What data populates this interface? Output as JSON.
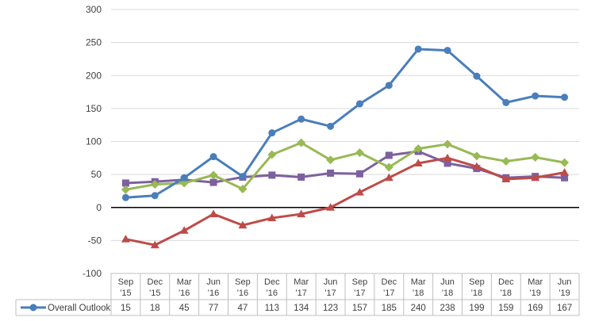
{
  "chart_data": {
    "type": "line",
    "title": "",
    "xlabel": "",
    "ylabel": "",
    "ylim": [
      -100,
      300
    ],
    "yticks": [
      "300",
      "250",
      "200",
      "150",
      "100",
      "50",
      "0",
      "-50",
      "-100"
    ],
    "ytick_values": [
      300,
      250,
      200,
      150,
      100,
      50,
      0,
      -50,
      -100
    ],
    "grid": true,
    "legend": "data-table",
    "categories": [
      [
        "Sep",
        "'15"
      ],
      [
        "Dec",
        "'15"
      ],
      [
        "Mar",
        "'16"
      ],
      [
        "Jun",
        "'16"
      ],
      [
        "Sep",
        "'16"
      ],
      [
        "Dec",
        "'16"
      ],
      [
        "Mar",
        "'17"
      ],
      [
        "Jun",
        "'17"
      ],
      [
        "Sep",
        "'17"
      ],
      [
        "Dec",
        "'17"
      ],
      [
        "Mar",
        "'18"
      ],
      [
        "Jun",
        "'18"
      ],
      [
        "Sep",
        "'18"
      ],
      [
        "Dec",
        "'18"
      ],
      [
        "Mar",
        "'19"
      ],
      [
        "Jun",
        "'19"
      ]
    ],
    "series": [
      {
        "name": "Overall Outlook",
        "color": "#4a7ebb",
        "marker": "circle",
        "in_table": true,
        "values": [
          15,
          18,
          45,
          77,
          47,
          113,
          134,
          123,
          157,
          185,
          240,
          238,
          199,
          159,
          169,
          167
        ]
      },
      {
        "name": "",
        "color": "#be4b48",
        "marker": "triangle",
        "in_table": false,
        "values": [
          -48,
          -57,
          -35,
          -10,
          -27,
          -16,
          -10,
          0,
          23,
          45,
          67,
          75,
          62,
          43,
          45,
          53
        ]
      },
      {
        "name": "",
        "color": "#98b954",
        "marker": "diamond",
        "in_table": false,
        "values": [
          27,
          35,
          37,
          49,
          28,
          80,
          98,
          72,
          83,
          61,
          89,
          96,
          78,
          70,
          76,
          68
        ]
      },
      {
        "name": "",
        "color": "#7d60a0",
        "marker": "square",
        "in_table": false,
        "values": [
          37,
          39,
          42,
          38,
          46,
          49,
          46,
          52,
          51,
          79,
          85,
          67,
          59,
          45,
          47,
          45
        ]
      }
    ]
  }
}
